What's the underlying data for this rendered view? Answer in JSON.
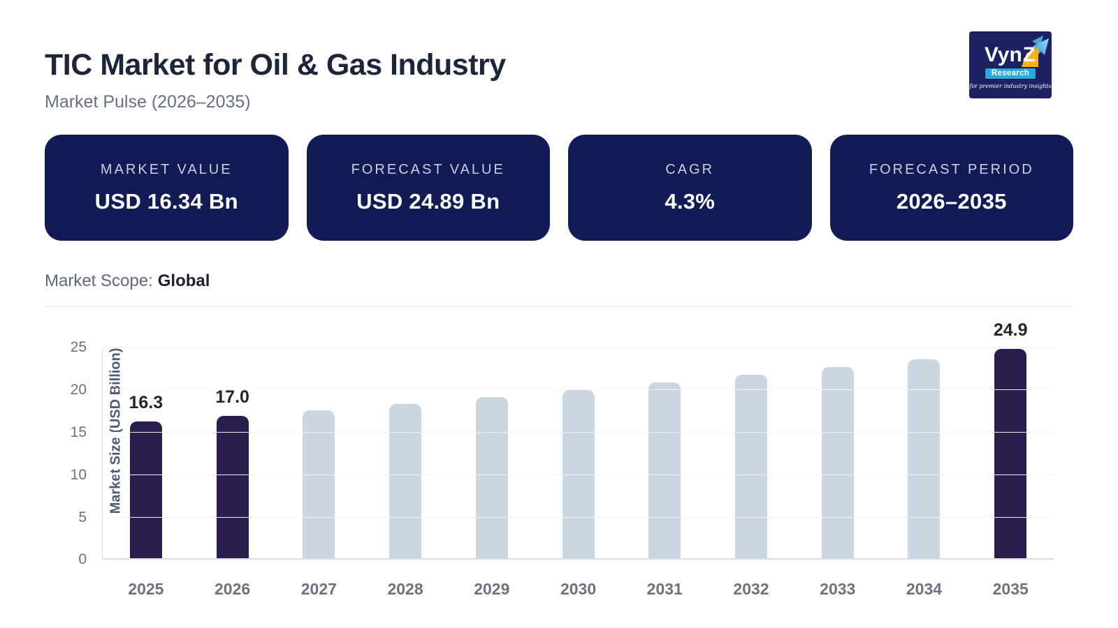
{
  "header": {
    "title": "TIC Market for Oil & Gas Industry",
    "subtitle": "Market Pulse (2026–2035)"
  },
  "logo": {
    "brand_prefix": "Vyn",
    "brand_last": "Z",
    "sub": "Research",
    "tagline": "for premier industry insights"
  },
  "kpis": [
    {
      "label": "MARKET VALUE",
      "value": "USD 16.34 Bn"
    },
    {
      "label": "FORECAST VALUE",
      "value": "USD 24.89 Bn"
    },
    {
      "label": "CAGR",
      "value": "4.3%"
    },
    {
      "label": "FORECAST PERIOD",
      "value": "2026–2035"
    }
  ],
  "scope": {
    "label": "Market Scope:",
    "value": "Global"
  },
  "chart_data": {
    "type": "bar",
    "title": "",
    "xlabel": "",
    "ylabel": "Market Size (USD Billion)",
    "categories": [
      "2025",
      "2026",
      "2027",
      "2028",
      "2029",
      "2030",
      "2031",
      "2032",
      "2033",
      "2034",
      "2035"
    ],
    "values": [
      16.3,
      17.0,
      17.6,
      18.4,
      19.2,
      20.0,
      20.9,
      21.8,
      22.7,
      23.6,
      24.9
    ],
    "labels": [
      "16.3",
      "17.0",
      "",
      "",
      "",
      "",
      "",
      "",
      "",
      "",
      "24.9"
    ],
    "highlighted": [
      true,
      true,
      false,
      false,
      false,
      false,
      false,
      false,
      false,
      false,
      true
    ],
    "ylim": [
      0,
      25
    ],
    "yticks": [
      0,
      5,
      10,
      15,
      20,
      25
    ],
    "grid": true,
    "legend": "none",
    "color_highlight": "#2b1e4e",
    "color_default": "#ccd5e2"
  },
  "theme": {
    "card_bg": "#131b55",
    "logo_bg": "#1b2162",
    "accent_yellow": "#f7b315",
    "accent_cyan": "#29a9e0",
    "title_color": "#1c2638",
    "muted_text": "#667085"
  }
}
